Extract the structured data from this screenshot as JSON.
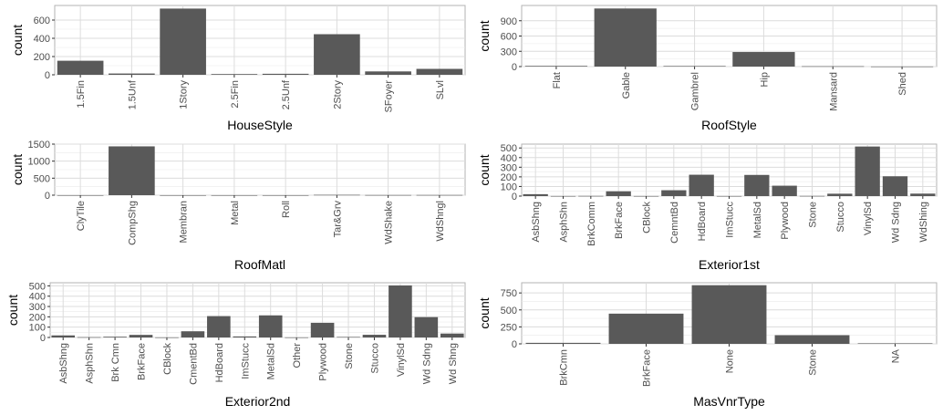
{
  "chart_data": [
    {
      "type": "bar",
      "xlabel": "HouseStyle",
      "ylabel": "count",
      "categories": [
        "1.5Fin",
        "1.5Unf",
        "1Story",
        "2.5Fin",
        "2.5Unf",
        "2Story",
        "SFoyer",
        "SLvl"
      ],
      "values": [
        154,
        14,
        726,
        8,
        11,
        445,
        37,
        65
      ],
      "ylim": [
        0,
        760
      ],
      "yticks": [
        0,
        200,
        400,
        600
      ],
      "grid": true
    },
    {
      "type": "bar",
      "xlabel": "RoofStyle",
      "ylabel": "count",
      "categories": [
        "Flat",
        "Gable",
        "Gambrel",
        "Hip",
        "Mansard",
        "Shed"
      ],
      "values": [
        13,
        1141,
        11,
        286,
        7,
        2
      ],
      "ylim": [
        0,
        1200
      ],
      "yticks": [
        0,
        300,
        600,
        900
      ],
      "grid": true
    },
    {
      "type": "bar",
      "xlabel": "RoofMatl",
      "ylabel": "count",
      "categories": [
        "ClyTile",
        "CompShg",
        "Membran",
        "Metal",
        "Roll",
        "Tar&Grv",
        "WdShake",
        "WdShngl"
      ],
      "values": [
        1,
        1434,
        1,
        1,
        1,
        11,
        5,
        6
      ],
      "ylim": [
        0,
        1500
      ],
      "yticks": [
        0,
        500,
        1000,
        1500
      ],
      "grid": true
    },
    {
      "type": "bar",
      "xlabel": "Exterior1st",
      "ylabel": "count",
      "categories": [
        "AsbShng",
        "AsphShn",
        "BrkComm",
        "BrkFace",
        "CBlock",
        "CemntBd",
        "HdBoard",
        "ImStucc",
        "MetalSd",
        "Plywood",
        "Stone",
        "Stucco",
        "VinylSd",
        "Wd Sdng",
        "WdShing"
      ],
      "values": [
        20,
        1,
        2,
        50,
        1,
        61,
        222,
        1,
        220,
        108,
        2,
        25,
        515,
        206,
        26
      ],
      "ylim": [
        0,
        540
      ],
      "yticks": [
        0,
        100,
        200,
        300,
        400,
        500
      ],
      "grid": true
    },
    {
      "type": "bar",
      "xlabel": "Exterior2nd",
      "ylabel": "count",
      "categories": [
        "AsbShng",
        "AsphShn",
        "Brk Cmn",
        "BrkFace",
        "CBlock",
        "CmentBd",
        "HdBoard",
        "ImStucc",
        "MetalSd",
        "Other",
        "Plywood",
        "Stone",
        "Stucco",
        "VinylSd",
        "Wd Sdng",
        "Wd Shng"
      ],
      "values": [
        20,
        3,
        7,
        25,
        1,
        60,
        207,
        10,
        214,
        1,
        142,
        5,
        26,
        504,
        197,
        38
      ],
      "ylim": [
        0,
        530
      ],
      "yticks": [
        0,
        100,
        200,
        300,
        400,
        500
      ],
      "grid": true
    },
    {
      "type": "bar",
      "xlabel": "MasVnrType",
      "ylabel": "count",
      "categories": [
        "BrkCmn",
        "BrkFace",
        "None",
        "Stone",
        "NA"
      ],
      "values": [
        15,
        445,
        864,
        128,
        8
      ],
      "ylim": [
        0,
        900
      ],
      "yticks": [
        0,
        250,
        500,
        750
      ],
      "grid": true
    }
  ]
}
